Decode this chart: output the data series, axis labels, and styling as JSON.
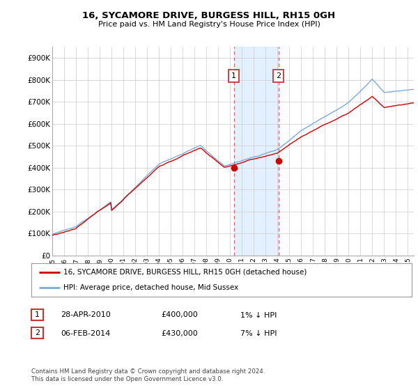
{
  "title": "16, SYCAMORE DRIVE, BURGESS HILL, RH15 0GH",
  "subtitle": "Price paid vs. HM Land Registry's House Price Index (HPI)",
  "ylabel_ticks": [
    "£0",
    "£100K",
    "£200K",
    "£300K",
    "£400K",
    "£500K",
    "£600K",
    "£700K",
    "£800K",
    "£900K"
  ],
  "ylim": [
    0,
    950000
  ],
  "xlim_start": 1995.0,
  "xlim_end": 2025.5,
  "sale1_x": 2010.32,
  "sale1_y": 400000,
  "sale2_x": 2014.09,
  "sale2_y": 430000,
  "sale_color": "#cc0000",
  "hpi_color": "#7aabdb",
  "legend_address": "16, SYCAMORE DRIVE, BURGESS HILL, RH15 0GH (detached house)",
  "legend_hpi": "HPI: Average price, detached house, Mid Sussex",
  "table_rows": [
    {
      "num": "1",
      "date": "28-APR-2010",
      "price": "£400,000",
      "hpi": "1% ↓ HPI"
    },
    {
      "num": "2",
      "date": "06-FEB-2014",
      "price": "£430,000",
      "hpi": "7% ↓ HPI"
    }
  ],
  "footer": "Contains HM Land Registry data © Crown copyright and database right 2024.\nThis data is licensed under the Open Government Licence v3.0.",
  "background_color": "#ffffff",
  "grid_color": "#cccccc",
  "shade_x1": 2010.32,
  "shade_x2": 2014.09,
  "box_color": "#cc3333"
}
